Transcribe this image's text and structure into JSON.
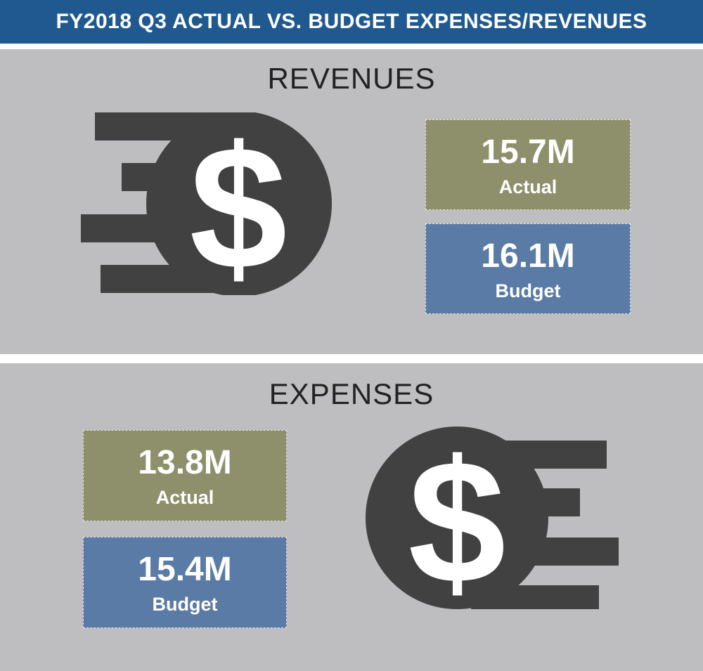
{
  "header": {
    "title": "FY2018 Q3 ACTUAL VS. BUDGET EXPENSES/REVENUES"
  },
  "revenues": {
    "title": "REVENUES",
    "actual": {
      "value": "15.7M",
      "label": "Actual"
    },
    "budget": {
      "value": "16.1M",
      "label": "Budget"
    },
    "icon": "dollar-coin-motion-icon"
  },
  "expenses": {
    "title": "EXPENSES",
    "actual": {
      "value": "13.8M",
      "label": "Actual"
    },
    "budget": {
      "value": "15.4M",
      "label": "Budget"
    },
    "icon": "dollar-coin-motion-icon"
  },
  "colors": {
    "banner": "#20598f",
    "panel_background": "#bebec1",
    "actual_box": "#8e8f6b",
    "budget_box": "#5a7ba6",
    "icon": "#414141",
    "title_text": "#222222"
  }
}
